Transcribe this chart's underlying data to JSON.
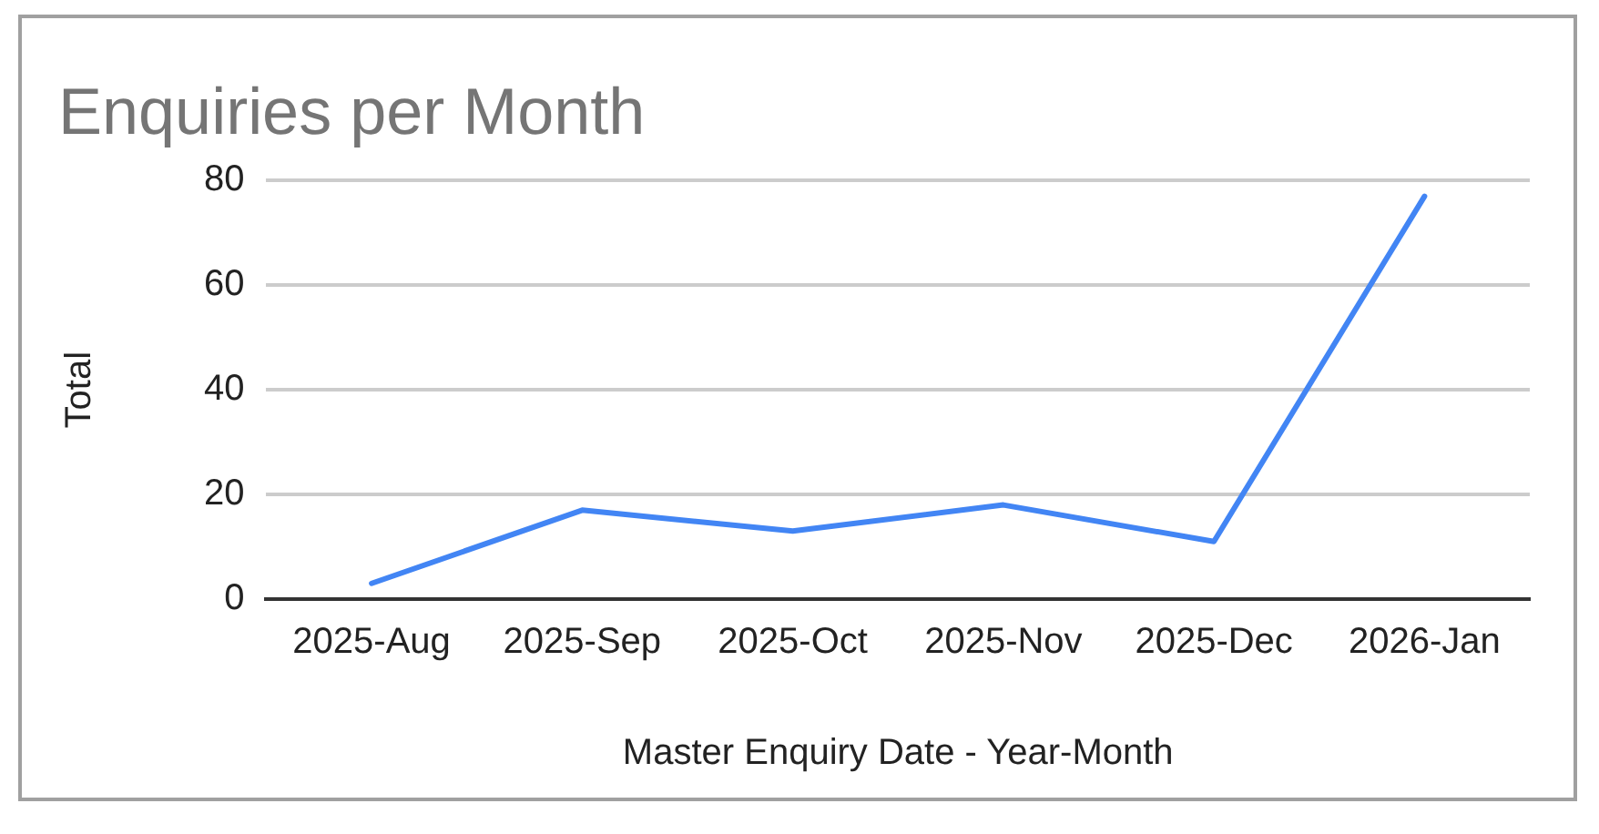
{
  "chart_data": {
    "type": "line",
    "title": "Enquiries per Month",
    "xlabel": "Master Enquiry Date - Year-Month",
    "ylabel": "Total",
    "categories": [
      "2025-Aug",
      "2025-Sep",
      "2025-Oct",
      "2025-Nov",
      "2025-Dec",
      "2026-Jan"
    ],
    "series": [
      {
        "color": "#4285f4",
        "values": [
          3,
          17,
          13,
          18,
          11,
          77
        ]
      }
    ],
    "ylim": [
      0,
      80
    ],
    "yticks": [
      0,
      20,
      40,
      60,
      80
    ],
    "grid": "y",
    "legend": false,
    "marker": "none"
  }
}
